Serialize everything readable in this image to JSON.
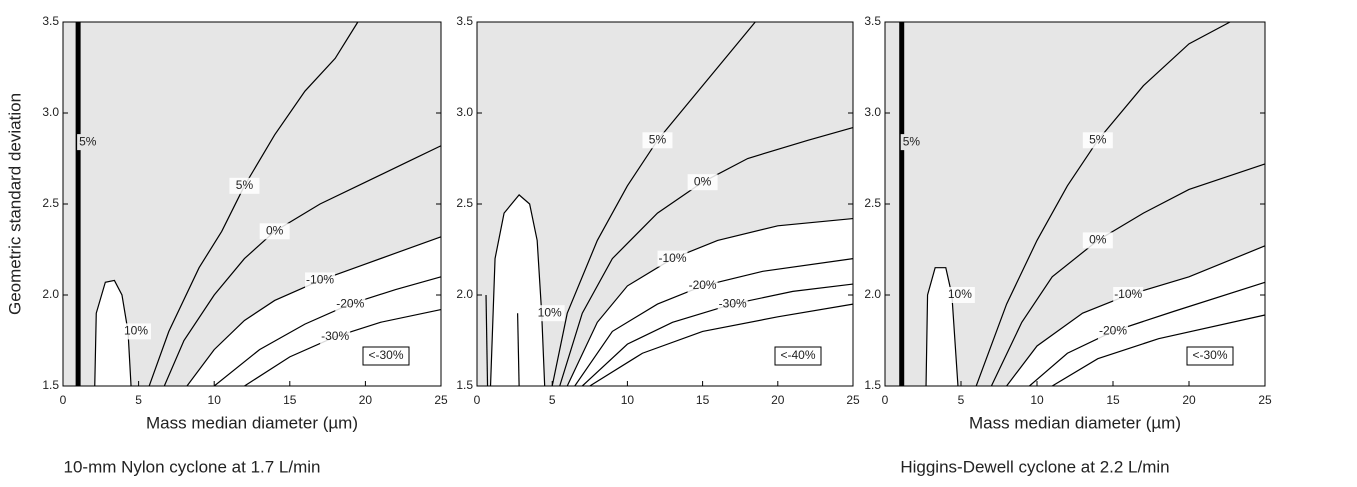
{
  "chart_data": [
    {
      "type": "contour",
      "color": "#000000",
      "background": "#e6e6e6",
      "ylabel": "Geometric standard deviation",
      "xlabel": "Mass median diameter (µm)",
      "caption": "10-mm Nylon cyclone at 1.7 L/min",
      "annotation": "<-30%",
      "xlim": [
        0,
        25
      ],
      "ylim": [
        1.5,
        3.5
      ],
      "xticks": [
        0,
        5,
        10,
        15,
        20,
        25
      ],
      "yticks": [
        1.5,
        {
          "value": 2,
          "label": "2.0"
        },
        2.5,
        {
          "value": 3,
          "label": "3.0"
        },
        3.5
      ],
      "marker_line": {
        "x": 1,
        "name": "5%"
      },
      "series": [
        {
          "name": "10%",
          "x": [
            2.1,
            2.2,
            2.8,
            3.4,
            3.9,
            4.3,
            4.5
          ],
          "y": [
            1.5,
            1.9,
            2.07,
            2.08,
            2.0,
            1.8,
            1.5
          ]
        },
        {
          "name": "5%",
          "x": [
            5.7,
            7,
            9,
            10.5,
            12,
            14,
            16,
            18,
            19.5
          ],
          "y": [
            1.5,
            1.8,
            2.15,
            2.35,
            2.6,
            2.88,
            3.12,
            3.3,
            3.5
          ]
        },
        {
          "name": "0%",
          "x": [
            6.7,
            8,
            10,
            12,
            14,
            17,
            20,
            23,
            25
          ],
          "y": [
            1.5,
            1.75,
            2.0,
            2.2,
            2.35,
            2.5,
            2.62,
            2.74,
            2.82
          ]
        },
        {
          "name": "-10%",
          "x": [
            8.2,
            10,
            12,
            14,
            17,
            20,
            23,
            25
          ],
          "y": [
            1.5,
            1.7,
            1.86,
            1.97,
            2.08,
            2.17,
            2.26,
            2.32
          ]
        },
        {
          "name": "-20%",
          "x": [
            10,
            13,
            16,
            19,
            22,
            25
          ],
          "y": [
            1.5,
            1.7,
            1.84,
            1.95,
            2.03,
            2.1
          ]
        },
        {
          "name": "-30%",
          "x": [
            12,
            15,
            18,
            21,
            25
          ],
          "y": [
            1.5,
            1.66,
            1.77,
            1.85,
            1.92
          ]
        }
      ]
    },
    {
      "type": "contour",
      "color": "#000000",
      "background": "#e6e6e6",
      "annotation": "<-40%",
      "xlim": [
        0,
        25
      ],
      "ylim": [
        1.5,
        3.5
      ],
      "xticks": [
        0,
        5,
        10,
        15,
        20,
        25
      ],
      "yticks": [
        1.5,
        {
          "value": 2,
          "label": "2.0"
        },
        2.5,
        {
          "value": 3,
          "label": "3.0"
        },
        3.5
      ],
      "series": [
        {
          "name": "10%",
          "x": [
            0.9,
            1.2,
            1.8,
            2.8,
            3.5,
            4.0,
            4.3,
            4.5
          ],
          "y": [
            1.5,
            2.2,
            2.45,
            2.55,
            2.5,
            2.3,
            1.9,
            1.5
          ]
        },
        {
          "name": "5%",
          "x": [
            5,
            6,
            8,
            10,
            12,
            14,
            16,
            18.5
          ],
          "y": [
            1.5,
            1.9,
            2.3,
            2.6,
            2.85,
            3.05,
            3.25,
            3.5
          ]
        },
        {
          "name": "0%",
          "x": [
            5.5,
            7,
            9,
            12,
            15,
            18,
            22,
            25
          ],
          "y": [
            1.5,
            1.9,
            2.2,
            2.45,
            2.62,
            2.75,
            2.85,
            2.92
          ]
        },
        {
          "name": "-10%",
          "x": [
            6,
            8,
            10,
            13,
            16,
            20,
            25
          ],
          "y": [
            1.5,
            1.85,
            2.05,
            2.2,
            2.3,
            2.38,
            2.42
          ]
        },
        {
          "name": "-20%",
          "x": [
            6.5,
            9,
            12,
            15,
            19,
            25
          ],
          "y": [
            1.5,
            1.8,
            1.95,
            2.05,
            2.13,
            2.2
          ]
        },
        {
          "name": "-30%",
          "x": [
            7,
            10,
            13,
            17,
            21,
            25
          ],
          "y": [
            1.5,
            1.73,
            1.85,
            1.95,
            2.02,
            2.06
          ]
        },
        {
          "x": [
            7.5,
            11,
            15,
            20,
            25
          ],
          "y": [
            1.5,
            1.68,
            1.8,
            1.88,
            1.95
          ]
        },
        {
          "x": [
            0.6,
            0.7
          ],
          "y": [
            2.0,
            1.5
          ]
        },
        {
          "x": [
            2.7,
            2.8
          ],
          "y": [
            1.9,
            1.5
          ]
        }
      ]
    },
    {
      "type": "contour",
      "color": "#000000",
      "background": "#e6e6e6",
      "xlabel": "Mass median diameter (µm)",
      "caption": "Higgins-Dewell cyclone at 2.2 L/min",
      "annotation": "<-30%",
      "xlim": [
        0,
        25
      ],
      "ylim": [
        1.5,
        3.5
      ],
      "xticks": [
        0,
        5,
        10,
        15,
        20,
        25
      ],
      "yticks": [
        1.5,
        {
          "value": 2,
          "label": "2.0"
        },
        2.5,
        {
          "value": 3,
          "label": "3.0"
        },
        3.5
      ],
      "marker_line": {
        "x": 1.1,
        "name": "5%"
      },
      "series": [
        {
          "name": "10%",
          "x": [
            2.7,
            2.8,
            3.3,
            4.0,
            4.4,
            4.8
          ],
          "y": [
            1.5,
            2.0,
            2.15,
            2.15,
            2.0,
            1.5
          ]
        },
        {
          "name": "5%",
          "x": [
            6,
            8,
            10,
            12,
            14,
            17,
            20,
            22.7
          ],
          "y": [
            1.5,
            1.95,
            2.3,
            2.6,
            2.85,
            3.15,
            3.38,
            3.5
          ]
        },
        {
          "name": "0%",
          "x": [
            7,
            9,
            11,
            14,
            17,
            20,
            25
          ],
          "y": [
            1.5,
            1.85,
            2.1,
            2.3,
            2.45,
            2.58,
            2.72
          ]
        },
        {
          "name": "-10%",
          "x": [
            8,
            10,
            13,
            16,
            20,
            25
          ],
          "y": [
            1.5,
            1.72,
            1.9,
            2.0,
            2.1,
            2.27
          ]
        },
        {
          "name": "-20%",
          "x": [
            9.5,
            12,
            15,
            19,
            25
          ],
          "y": [
            1.5,
            1.68,
            1.8,
            1.91,
            2.07
          ]
        },
        {
          "x": [
            11,
            14,
            18,
            25
          ],
          "y": [
            1.5,
            1.65,
            1.76,
            1.89
          ]
        }
      ]
    }
  ]
}
